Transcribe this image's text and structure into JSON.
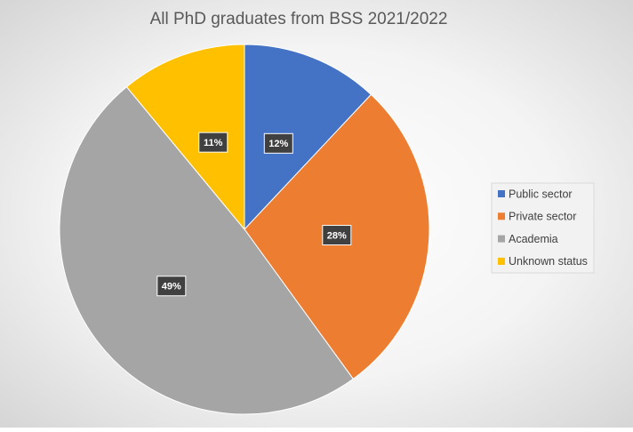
{
  "chart_data": {
    "type": "pie",
    "title": "All PhD graduates from BSS 2021/2022",
    "categories": [
      "Public sector",
      "Private sector",
      "Academia",
      "Unknown status"
    ],
    "values": [
      12,
      28,
      49,
      11
    ],
    "value_labels": [
      "12%",
      "28%",
      "49%",
      "11%"
    ],
    "colors": [
      "#4472c4",
      "#ed7d31",
      "#a5a5a5",
      "#ffc000"
    ],
    "legend": "right"
  }
}
